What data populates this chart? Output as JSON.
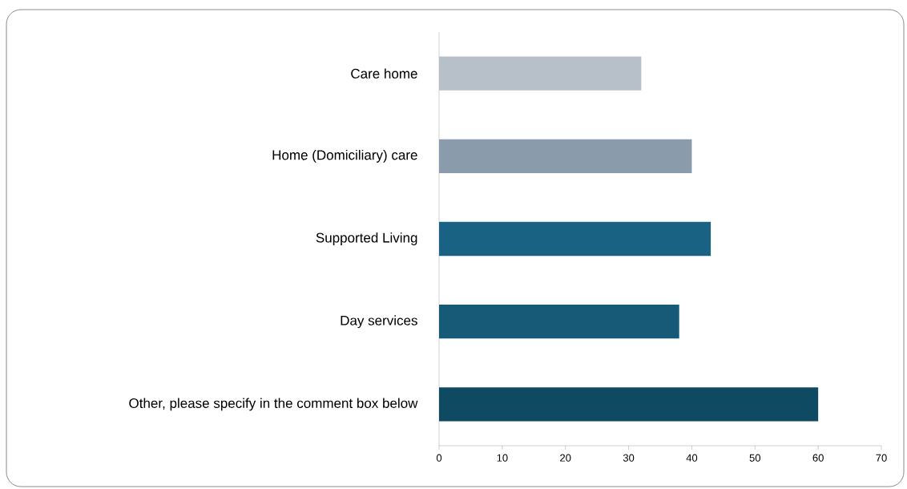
{
  "chart_data": {
    "type": "bar",
    "orientation": "horizontal",
    "categories": [
      "Care home",
      "Home (Domiciliary) care",
      "Supported Living",
      "Day services",
      "Other, please specify in the comment box below"
    ],
    "values": [
      32,
      40,
      43,
      38,
      60
    ],
    "colors": [
      "#b7c0c9",
      "#8a9bab",
      "#1a6283",
      "#165a78",
      "#0f4a63"
    ],
    "xlim": [
      0,
      70
    ],
    "xticks": [
      0,
      10,
      20,
      30,
      40,
      50,
      60,
      70
    ],
    "grid": false
  }
}
